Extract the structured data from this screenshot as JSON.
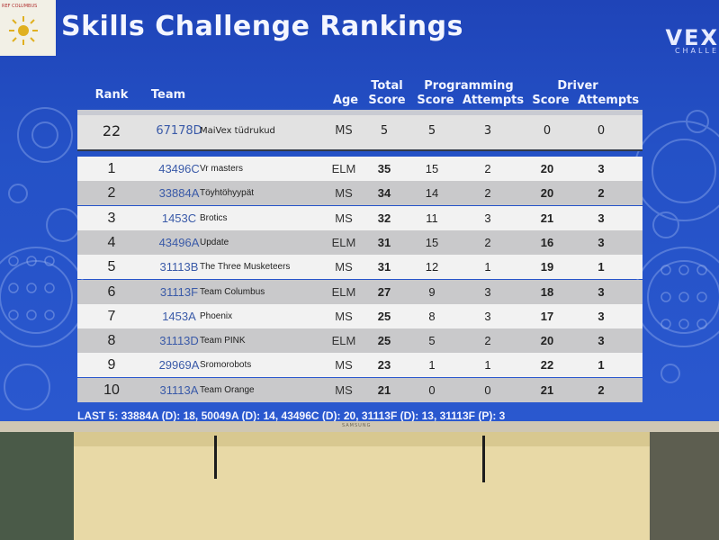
{
  "title": "Skills Challenge Rankings",
  "logo_left_text": "REF COLUMBUS",
  "brand_right": "VEX",
  "brand_right_sub": "CHALLE",
  "headers": {
    "rank": "Rank",
    "team": "Team",
    "age": "Age",
    "total_line1": "Total",
    "total_line2": "Score",
    "programming": "Programming",
    "prog_score": "Score",
    "prog_attempts": "Attempts",
    "driver": "Driver",
    "driver_score": "Score",
    "driver_attempts": "Attempts"
  },
  "pinned_row": {
    "rank": "22",
    "team": "67178D",
    "name": "MaiVex tüdrukud",
    "age": "MS",
    "total": "5",
    "prog_score": "5",
    "prog_attempts": "3",
    "driver_score": "0",
    "driver_attempts": "0"
  },
  "rows": [
    {
      "rank": "1",
      "team": "43496C",
      "name": "Vr masters",
      "age": "ELM",
      "total": "35",
      "prog_score": "15",
      "prog_attempts": "2",
      "driver_score": "20",
      "driver_attempts": "3"
    },
    {
      "rank": "2",
      "team": "33884A",
      "name": "Töyhtöhyypät",
      "age": "MS",
      "total": "34",
      "prog_score": "14",
      "prog_attempts": "2",
      "driver_score": "20",
      "driver_attempts": "2"
    },
    {
      "rank": "3",
      "team": "1453C",
      "name": "Brotics",
      "age": "MS",
      "total": "32",
      "prog_score": "11",
      "prog_attempts": "3",
      "driver_score": "21",
      "driver_attempts": "3"
    },
    {
      "rank": "4",
      "team": "43496A",
      "name": "Update",
      "age": "ELM",
      "total": "31",
      "prog_score": "15",
      "prog_attempts": "2",
      "driver_score": "16",
      "driver_attempts": "3"
    },
    {
      "rank": "5",
      "team": "31113B",
      "name": "The Three Musketeers",
      "age": "MS",
      "total": "31",
      "prog_score": "12",
      "prog_attempts": "1",
      "driver_score": "19",
      "driver_attempts": "1"
    },
    {
      "rank": "6",
      "team": "31113F",
      "name": "Team Columbus",
      "age": "ELM",
      "total": "27",
      "prog_score": "9",
      "prog_attempts": "3",
      "driver_score": "18",
      "driver_attempts": "3"
    },
    {
      "rank": "7",
      "team": "1453A",
      "name": "Phoenix",
      "age": "MS",
      "total": "25",
      "prog_score": "8",
      "prog_attempts": "3",
      "driver_score": "17",
      "driver_attempts": "3"
    },
    {
      "rank": "8",
      "team": "31113D",
      "name": "Team PINK",
      "age": "ELM",
      "total": "25",
      "prog_score": "5",
      "prog_attempts": "2",
      "driver_score": "20",
      "driver_attempts": "3"
    },
    {
      "rank": "9",
      "team": "29969A",
      "name": "Sromorobots",
      "age": "MS",
      "total": "23",
      "prog_score": "1",
      "prog_attempts": "1",
      "driver_score": "22",
      "driver_attempts": "1"
    },
    {
      "rank": "10",
      "team": "31113A",
      "name": "Team Orange",
      "age": "MS",
      "total": "21",
      "prog_score": "0",
      "prog_attempts": "0",
      "driver_score": "21",
      "driver_attempts": "2"
    }
  ],
  "ticker": "LAST 5: 33884A (D): 18, 50049A (D): 14, 43496C (D): 20, 31113F (D): 13, 31113F (P): 3",
  "tv_brand": "SAMSUNG",
  "colors": {
    "screen_blue": "#2451c6",
    "row_light": "#f2f2f2",
    "row_dark": "#c9c9cb",
    "team_link": "#3a5aa8",
    "board": "#e8d9a6"
  }
}
